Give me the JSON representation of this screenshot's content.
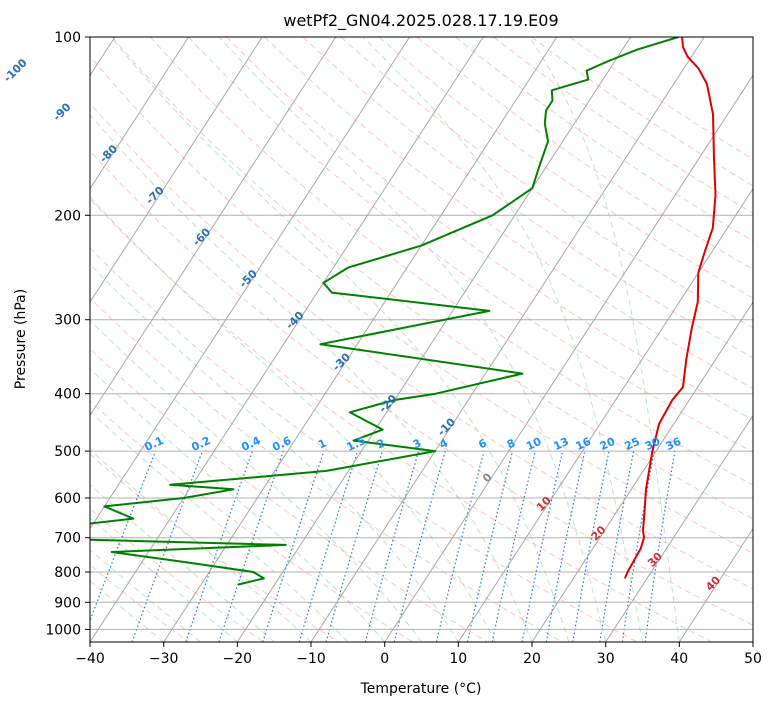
{
  "chart_data": {
    "type": "line",
    "title": "wetPf2_GN04.2025.028.17.19.E09",
    "xlabel": "Temperature (°C)",
    "ylabel": "Pressure (hPa)",
    "xlim": [
      -40,
      50
    ],
    "ylim": [
      1050,
      100
    ],
    "y_scale": "log",
    "grid": true,
    "x_ticks": [
      "−40",
      "−30",
      "−20",
      "−10",
      "0",
      "10",
      "20",
      "30",
      "40",
      "50"
    ],
    "y_ticks": [
      {
        "p": 100,
        "label": "100"
      },
      {
        "p": 200,
        "label": "200"
      },
      {
        "p": 300,
        "label": "300"
      },
      {
        "p": 400,
        "label": "400"
      },
      {
        "p": 500,
        "label": "500"
      },
      {
        "p": 600,
        "label": "600"
      },
      {
        "p": 700,
        "label": "700"
      },
      {
        "p": 800,
        "label": "800"
      },
      {
        "p": 900,
        "label": "900"
      },
      {
        "p": 1000,
        "label": "1000"
      }
    ],
    "isotherm_labels": [
      {
        "t": -100,
        "label": "-100"
      },
      {
        "t": -90,
        "label": "-90"
      },
      {
        "t": -80,
        "label": "-80"
      },
      {
        "t": -70,
        "label": "-70"
      },
      {
        "t": -60,
        "label": "-60"
      },
      {
        "t": -50,
        "label": "-50"
      },
      {
        "t": -40,
        "label": "-40"
      },
      {
        "t": -30,
        "label": "-30"
      },
      {
        "t": -20,
        "label": "-20"
      },
      {
        "t": -10,
        "label": "-10"
      },
      {
        "t": 0,
        "label": "0"
      },
      {
        "t": 10,
        "label": "10"
      },
      {
        "t": 20,
        "label": "20"
      },
      {
        "t": 30,
        "label": "30"
      },
      {
        "t": 40,
        "label": "40"
      }
    ],
    "mixing_ratio_labels": [
      "0.1",
      "0.2",
      "0.4",
      "0.6",
      "1",
      "1.5",
      "2",
      "3",
      "4",
      "6",
      "8",
      "10",
      "13",
      "16",
      "20",
      "25",
      "30",
      "36"
    ],
    "series": [
      {
        "kind": "temperature",
        "color": "#e00000",
        "x": [
          27.0,
          26.8,
          26.5,
          26.0,
          25.2,
          24.0,
          22.0,
          19.5,
          18.0,
          17.7,
          18.0,
          16.0,
          14.0,
          12.5,
          10.0,
          9.0,
          8.0,
          5.5,
          2.0,
          -2.0,
          -5.5,
          -8.0,
          -10.5,
          -12.0,
          -13.0
        ],
        "y": [
          820,
          800,
          730,
          700,
          680,
          640,
          580,
          500,
          450,
          410,
          390,
          350,
          310,
          280,
          250,
          230,
          210,
          185,
          160,
          135,
          120,
          113,
          108,
          104,
          100
        ]
      },
      {
        "kind": "dewpoint",
        "color": "#008000",
        "x": [
          -25,
          -22,
          -24,
          -34,
          -45,
          -22,
          -60,
          -58,
          -45,
          -50,
          -40,
          -34,
          -43,
          -23,
          -10,
          -22,
          -19,
          -25,
          -20,
          -15,
          -5,
          -35,
          -15,
          -38,
          -40,
          -38,
          -30,
          -23,
          -20,
          -21,
          -22,
          -24,
          -25,
          -25,
          -26,
          -22,
          -23,
          -21,
          -18,
          -13.5
        ],
        "y": [
          840,
          820,
          800,
          770,
          740,
          720,
          700,
          680,
          650,
          620,
          600,
          580,
          570,
          540,
          500,
          480,
          460,
          430,
          410,
          400,
          370,
          330,
          290,
          270,
          260,
          245,
          225,
          200,
          180,
          165,
          150,
          140,
          133,
          128,
          123,
          118,
          114,
          110,
          105,
          100
        ]
      }
    ]
  }
}
